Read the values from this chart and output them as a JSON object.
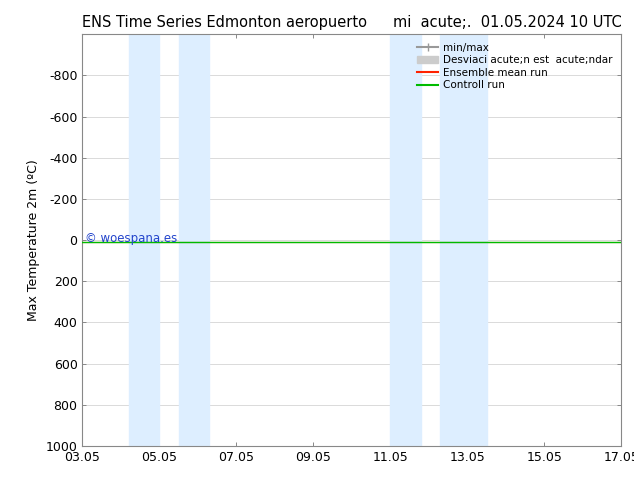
{
  "title": "ENS Time Series Edmonton aeropuerto",
  "subtitle": "mi  acute;.  01.05.2024 10 UTC",
  "ylabel": "Max Temperature 2m (ºC)",
  "background_color": "#ffffff",
  "plot_bg_color": "#ffffff",
  "ylim_bottom": 1000,
  "ylim_top": -1000,
  "ytick_step": 200,
  "yticks": [
    -800,
    -600,
    -400,
    -200,
    0,
    200,
    400,
    600,
    800,
    1000
  ],
  "x_start": 0,
  "x_end": 14,
  "xtick_labels": [
    "03.05",
    "05.05",
    "07.05",
    "09.05",
    "11.05",
    "13.05",
    "15.05",
    "17.05"
  ],
  "xtick_positions": [
    0,
    2,
    4,
    6,
    8,
    10,
    12,
    14
  ],
  "blue_bands": [
    [
      1.2,
      2.0
    ],
    [
      2.5,
      3.3
    ],
    [
      8.0,
      8.8
    ],
    [
      9.3,
      10.5
    ]
  ],
  "blue_band_color": "#ddeeff",
  "line_y": 10,
  "control_run_color": "#00bb00",
  "ensemble_mean_color": "#ff2200",
  "minmax_color": "#999999",
  "std_color": "#cccccc",
  "watermark": "© woespana.es",
  "watermark_color": "#2244cc",
  "legend_labels": [
    "min/max",
    "Desviaci acute;n est  acute;ndar",
    "Ensemble mean run",
    "Controll run"
  ],
  "legend_colors": [
    "#999999",
    "#cccccc",
    "#ff2200",
    "#00bb00"
  ]
}
